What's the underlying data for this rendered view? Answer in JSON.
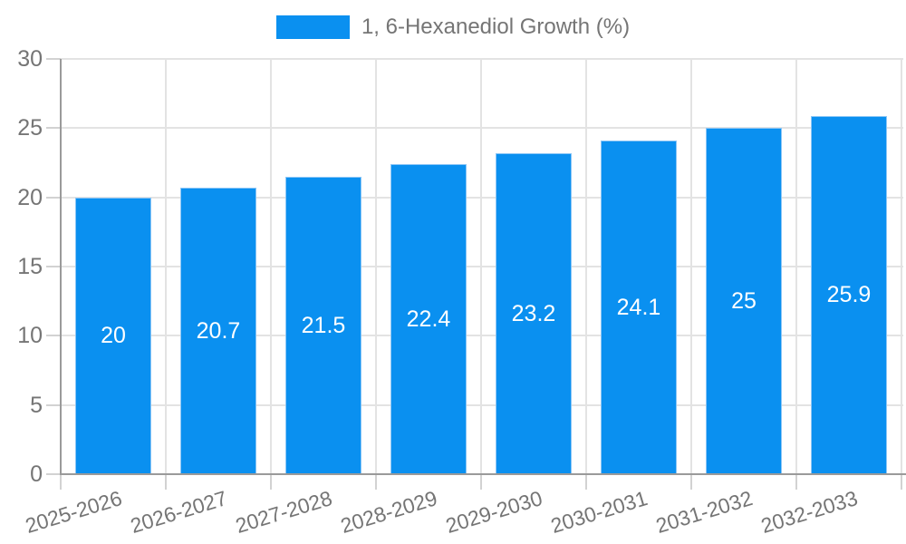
{
  "chart_data": {
    "type": "bar",
    "title": "1, 6-Hexanediol Growth (%)",
    "categories": [
      "2025-2026",
      "2026-2027",
      "2027-2028",
      "2028-2029",
      "2029-2030",
      "2030-2031",
      "2031-2032",
      "2032-2033"
    ],
    "series": [
      {
        "name": "1, 6-Hexanediol Growth (%)",
        "values": [
          20,
          20.7,
          21.5,
          22.4,
          23.2,
          24.1,
          25,
          25.9
        ],
        "value_labels": [
          "20",
          "20.7",
          "21.5",
          "22.4",
          "23.2",
          "24.1",
          "25",
          "25.9"
        ]
      }
    ],
    "xlabel": "",
    "ylabel": "",
    "ylim": [
      0,
      30
    ],
    "yticks": [
      0,
      5,
      10,
      15,
      20,
      25,
      30
    ],
    "grid": true,
    "legend_position": "top",
    "colors": {
      "bar": "#0a90f0",
      "bar_border": "#8cc6f6",
      "value_text": "#ffffff",
      "axis_text": "#757575",
      "grid_line": "#e3e3e3",
      "axis_line": "#9a9a9a",
      "background": "#ffffff"
    }
  }
}
